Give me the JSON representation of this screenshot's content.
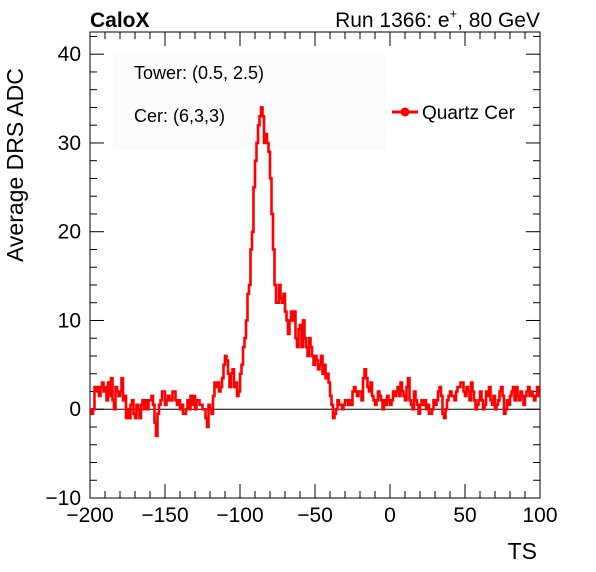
{
  "header": {
    "left": "CaloX",
    "right_prefix": "Run 1366: e",
    "right_sup": "+",
    "right_suffix": ", 80 GeV"
  },
  "info": {
    "tower": "Tower: (0.5, 2.5)",
    "cer": "Cer: (6,3,3)"
  },
  "chart_data": {
    "type": "line",
    "title": "",
    "xlabel": "TS",
    "ylabel": "Average DRS ADC",
    "xlim": [
      -200,
      100
    ],
    "ylim": [
      -10,
      42.5
    ],
    "xticks": [
      -200,
      -150,
      -100,
      -50,
      0,
      50,
      100
    ],
    "yticks": [
      -10,
      0,
      10,
      20,
      30,
      40
    ],
    "grid": false,
    "legend_position": "top-right",
    "reference_line_y": 0,
    "colors": {
      "series": "#ff0000",
      "axis": "#000000",
      "reference": "#000000"
    },
    "series": [
      {
        "name": "Quartz Cer",
        "step": true,
        "x_start": -200,
        "x_step": 1,
        "values": [
          0,
          -0.5,
          0,
          2.5,
          2,
          2.5,
          1.5,
          2.5,
          3,
          2,
          2.5,
          1,
          3,
          1.5,
          3.5,
          1,
          0,
          2.5,
          2,
          1.5,
          2,
          3.5,
          1,
          1.5,
          -1,
          0,
          -1,
          0.5,
          1,
          -0.5,
          -1,
          0.5,
          0,
          -1,
          0.5,
          1,
          0,
          1,
          0,
          1,
          1,
          1.5,
          0.5,
          -1.5,
          -3,
          -0.5,
          0.5,
          1,
          2,
          2,
          0.5,
          1,
          1.5,
          1,
          1,
          2,
          2,
          1,
          0.5,
          1,
          0,
          0.5,
          -0.5,
          -0.5,
          0,
          1,
          0,
          1.5,
          0.5,
          1.5,
          0,
          1,
          1,
          0.5,
          0.5,
          0,
          0,
          -1,
          -2,
          0.5,
          0,
          -0.5,
          1.5,
          3,
          2.5,
          3,
          2,
          2.5,
          3.5,
          5,
          6,
          5.5,
          4,
          2.5,
          4,
          4.5,
          2.5,
          3,
          1.5,
          2,
          4,
          5,
          7,
          8,
          10,
          13,
          14,
          18,
          20,
          25,
          28,
          30,
          32,
          33,
          34,
          33,
          30,
          31,
          30,
          29,
          26,
          22,
          18,
          14,
          12,
          12,
          14,
          12.5,
          12,
          13,
          11,
          10,
          8.5,
          10,
          11,
          10,
          11,
          8,
          7,
          9,
          9.5,
          7,
          10,
          8,
          7,
          6,
          8,
          7,
          6,
          5,
          6,
          5.5,
          4.5,
          5,
          6,
          4,
          5,
          3.5,
          4,
          3,
          1.5,
          0.5,
          -1,
          -0.5,
          0,
          1,
          0.5,
          0.5,
          0,
          0.5,
          1,
          1,
          0.5,
          1,
          0.5,
          2,
          2.5,
          2,
          1.5,
          2,
          2,
          1,
          3.5,
          4.5,
          3.5,
          2.5,
          2,
          3,
          1.5,
          1,
          0.5,
          1,
          2,
          1.5,
          1,
          0,
          1,
          0.5,
          1.5,
          1,
          0.5,
          1,
          2,
          1.5,
          2,
          2.5,
          1.5,
          3,
          2,
          1.5,
          1,
          2.5,
          3.5,
          1,
          0.5,
          0,
          2,
          1,
          0.5,
          -0.5,
          0.5,
          1,
          0.5,
          1,
          0,
          0.5,
          -0.5,
          -0.5,
          0,
          1,
          0.5,
          1,
          2,
          2.5,
          1.5,
          -0.5,
          -1,
          0,
          1,
          1.5,
          2,
          1.5,
          1.5,
          1,
          2,
          2.5,
          2.5,
          3,
          3,
          2,
          1.5,
          2.5,
          2,
          1,
          3,
          2,
          1,
          0,
          0.5,
          1,
          2,
          1,
          0,
          0.5,
          2,
          1.5,
          2.5,
          1,
          0.5,
          1.5,
          0,
          0.5,
          1,
          2,
          2.5,
          1.5,
          -0.5,
          0,
          1,
          0.5,
          1.5,
          2,
          2.5,
          1,
          2.5,
          1.5,
          1,
          2,
          1.5,
          0.5,
          1.5,
          2,
          2.5,
          1.5,
          2,
          1.5,
          1,
          1.5,
          2.5,
          1.5
        ]
      }
    ]
  }
}
